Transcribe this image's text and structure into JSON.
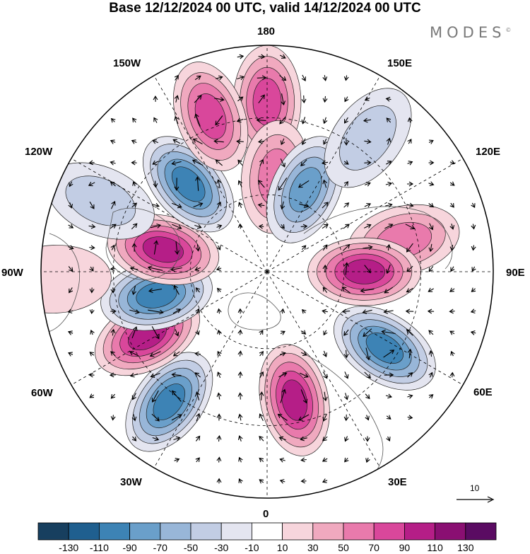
{
  "title": "Base 12/12/2024 00 UTC, valid 14/12/2024 00 UTC",
  "brand": "MODES",
  "brand_mark": "©",
  "longitude_labels": {
    "top": "180",
    "top_right": "150E",
    "upper_right": "120E",
    "right": "90E",
    "lower_right": "60E",
    "bottom_right": "30E",
    "bottom": "0",
    "bottom_left": "30W",
    "lower_left": "60W",
    "left": "90W",
    "upper_left": "120W",
    "top_left": "150W"
  },
  "reference_vector_label": "10",
  "colorbar": {
    "labels": [
      "-130",
      "-110",
      "-90",
      "-70",
      "-50",
      "-30",
      "-10",
      "10",
      "30",
      "50",
      "70",
      "90",
      "110",
      "130"
    ],
    "colors": [
      "#173f5f",
      "#1f5f8f",
      "#3d83b5",
      "#6a9fca",
      "#98b6d8",
      "#c2cde4",
      "#e4e5f0",
      "#ffffff",
      "#f7d5dc",
      "#f0a9bf",
      "#e97aac",
      "#d9479b",
      "#b51e87",
      "#8a0f72",
      "#5a0b62"
    ]
  },
  "anomaly_blobs": [
    {
      "lon": 180,
      "r_frac": 0.75,
      "sign": 1,
      "strength": 80
    },
    {
      "lon": 175,
      "r_frac": 0.42,
      "sign": 1,
      "strength": 70
    },
    {
      "lon": 155,
      "r_frac": 0.4,
      "sign": -1,
      "strength": 80
    },
    {
      "lon": 143,
      "r_frac": 0.74,
      "sign": -1,
      "strength": 40
    },
    {
      "lon": 103,
      "r_frac": 0.62,
      "sign": 1,
      "strength": 60
    },
    {
      "lon": 90,
      "r_frac": 0.43,
      "sign": 1,
      "strength": 110
    },
    {
      "lon": 57,
      "r_frac": 0.62,
      "sign": -1,
      "strength": 110
    },
    {
      "lon": 12,
      "r_frac": 0.58,
      "sign": 1,
      "strength": 110
    },
    {
      "lon": -37,
      "r_frac": 0.72,
      "sign": -1,
      "strength": 100
    },
    {
      "lon": -62,
      "r_frac": 0.6,
      "sign": 1,
      "strength": 100
    },
    {
      "lon": -78,
      "r_frac": 0.5,
      "sign": -1,
      "strength": 110
    },
    {
      "lon": -102,
      "r_frac": 0.47,
      "sign": 1,
      "strength": 110
    },
    {
      "lon": -138,
      "r_frac": 0.52,
      "sign": -1,
      "strength": 100
    },
    {
      "lon": -160,
      "r_frac": 0.73,
      "sign": 1,
      "strength": 90
    },
    {
      "lon": -113,
      "r_frac": 0.8,
      "sign": -1,
      "strength": 40
    },
    {
      "lon": -88,
      "r_frac": 0.94,
      "sign": 1,
      "strength": 30
    }
  ]
}
